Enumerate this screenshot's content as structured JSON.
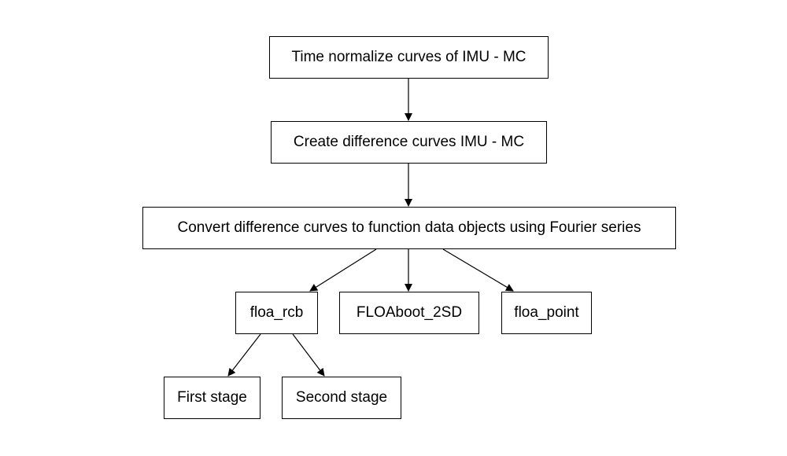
{
  "diagram": {
    "nodes": [
      {
        "id": "n1",
        "label": "Time normalize curves of IMU - MC"
      },
      {
        "id": "n2",
        "label": "Create difference curves IMU - MC"
      },
      {
        "id": "n3",
        "label": "Convert difference curves to function data objects using Fourier series"
      },
      {
        "id": "n4",
        "label": "floa_rcb"
      },
      {
        "id": "n5",
        "label": "FLOAboot_2SD"
      },
      {
        "id": "n6",
        "label": "floa_point"
      },
      {
        "id": "n7",
        "label": "First stage"
      },
      {
        "id": "n8",
        "label": "Second stage"
      }
    ],
    "edges": [
      {
        "from": "n1",
        "to": "n2"
      },
      {
        "from": "n2",
        "to": "n3"
      },
      {
        "from": "n3",
        "to": "n4"
      },
      {
        "from": "n3",
        "to": "n5"
      },
      {
        "from": "n3",
        "to": "n6"
      },
      {
        "from": "n4",
        "to": "n7"
      },
      {
        "from": "n4",
        "to": "n8"
      }
    ],
    "line_color": "#000000",
    "node_fill": "#ffffff"
  }
}
